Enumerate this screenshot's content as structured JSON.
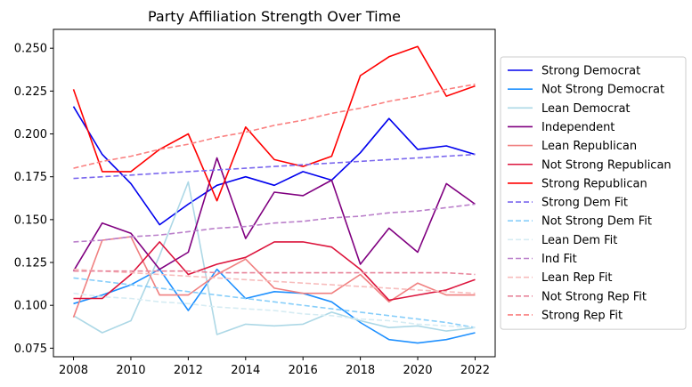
{
  "chart_data": {
    "type": "line",
    "title": "Party Affiliation Strength Over Time",
    "xlabel": "",
    "ylabel": "",
    "xlim": [
      2007.3,
      2022.7
    ],
    "ylim": [
      0.07,
      0.261
    ],
    "x_ticks": [
      2008,
      2010,
      2012,
      2014,
      2016,
      2018,
      2020,
      2022
    ],
    "y_ticks": [
      0.075,
      0.1,
      0.125,
      0.15,
      0.175,
      0.2,
      0.225,
      0.25
    ],
    "y_tick_labels": [
      "0.075",
      "0.100",
      "0.125",
      "0.150",
      "0.175",
      "0.200",
      "0.225",
      "0.250"
    ],
    "grid": false,
    "legend_position": "right-outside",
    "x": [
      2008,
      2009,
      2010,
      2011,
      2012,
      2013,
      2014,
      2015,
      2016,
      2017,
      2018,
      2019,
      2020,
      2021,
      2022
    ],
    "series": [
      {
        "name": "Strong Democrat",
        "color": "#0000ee",
        "style": "solid",
        "values": [
          0.216,
          0.188,
          0.171,
          0.147,
          0.159,
          0.17,
          0.175,
          0.17,
          0.178,
          0.173,
          0.189,
          0.209,
          0.191,
          0.193,
          0.188
        ]
      },
      {
        "name": "Not Strong Democrat",
        "color": "#1e90ff",
        "style": "solid",
        "values": [
          0.101,
          0.106,
          0.112,
          0.121,
          0.097,
          0.121,
          0.104,
          0.108,
          0.107,
          0.102,
          0.09,
          0.08,
          0.078,
          0.08,
          0.084
        ]
      },
      {
        "name": "Lean Democrat",
        "color": "#add8e6",
        "style": "solid",
        "values": [
          0.094,
          0.084,
          0.091,
          0.129,
          0.172,
          0.083,
          0.089,
          0.088,
          0.089,
          0.096,
          0.091,
          0.087,
          0.088,
          0.085,
          0.087
        ]
      },
      {
        "name": "Independent",
        "color": "#800080",
        "style": "solid",
        "values": [
          0.12,
          0.148,
          0.142,
          0.121,
          0.131,
          0.186,
          0.139,
          0.166,
          0.164,
          0.173,
          0.124,
          0.145,
          0.131,
          0.171,
          0.159
        ]
      },
      {
        "name": "Lean Republican",
        "color": "#f08080",
        "style": "solid",
        "values": [
          0.093,
          0.138,
          0.14,
          0.106,
          0.106,
          0.118,
          0.127,
          0.11,
          0.107,
          0.107,
          0.118,
          0.102,
          0.113,
          0.106,
          0.106
        ]
      },
      {
        "name": "Not Strong Republican",
        "color": "#dc143c",
        "style": "solid",
        "values": [
          0.104,
          0.104,
          0.118,
          0.137,
          0.118,
          0.124,
          0.128,
          0.137,
          0.137,
          0.134,
          0.121,
          0.103,
          0.106,
          0.109,
          0.115
        ]
      },
      {
        "name": "Strong Republican",
        "color": "#ff0000",
        "style": "solid",
        "values": [
          0.226,
          0.178,
          0.178,
          0.191,
          0.2,
          0.161,
          0.204,
          0.185,
          0.181,
          0.187,
          0.234,
          0.245,
          0.251,
          0.222,
          0.228
        ]
      },
      {
        "name": "Strong Dem Fit",
        "color": "#7b68ee",
        "style": "dashed",
        "values": [
          0.174,
          0.175,
          0.176,
          0.177,
          0.178,
          0.179,
          0.18,
          0.181,
          0.182,
          0.183,
          0.184,
          0.185,
          0.186,
          0.187,
          0.188
        ]
      },
      {
        "name": "Not Strong Dem Fit",
        "color": "#87cefa",
        "style": "dashed",
        "values": [
          0.116,
          0.114,
          0.112,
          0.11,
          0.108,
          0.106,
          0.104,
          0.102,
          0.1,
          0.098,
          0.096,
          0.094,
          0.092,
          0.09,
          0.087
        ]
      },
      {
        "name": "Lean Dem Fit",
        "color": "#d6ecf3",
        "style": "dashed",
        "values": [
          0.107,
          0.105,
          0.104,
          0.102,
          0.101,
          0.099,
          0.098,
          0.097,
          0.095,
          0.094,
          0.092,
          0.091,
          0.089,
          0.088,
          0.087
        ]
      },
      {
        "name": "Ind Fit",
        "color": "#ba7fca",
        "style": "dashed",
        "values": [
          0.137,
          0.138,
          0.14,
          0.141,
          0.143,
          0.145,
          0.146,
          0.148,
          0.149,
          0.151,
          0.152,
          0.154,
          0.155,
          0.157,
          0.159
        ]
      },
      {
        "name": "Lean Rep Fit",
        "color": "#f7bcbc",
        "style": "dashed",
        "values": [
          0.121,
          0.12,
          0.119,
          0.118,
          0.117,
          0.116,
          0.115,
          0.114,
          0.113,
          0.112,
          0.111,
          0.11,
          0.109,
          0.108,
          0.107
        ]
      },
      {
        "name": "Not Strong Rep Fit",
        "color": "#e8859b",
        "style": "dashed",
        "values": [
          0.12,
          0.12,
          0.12,
          0.12,
          0.12,
          0.119,
          0.119,
          0.119,
          0.119,
          0.119,
          0.119,
          0.119,
          0.119,
          0.119,
          0.118
        ]
      },
      {
        "name": "Strong Rep Fit",
        "color": "#fa8080",
        "style": "dashed",
        "values": [
          0.18,
          0.184,
          0.187,
          0.191,
          0.194,
          0.198,
          0.201,
          0.205,
          0.208,
          0.212,
          0.215,
          0.219,
          0.222,
          0.226,
          0.229
        ]
      }
    ]
  }
}
